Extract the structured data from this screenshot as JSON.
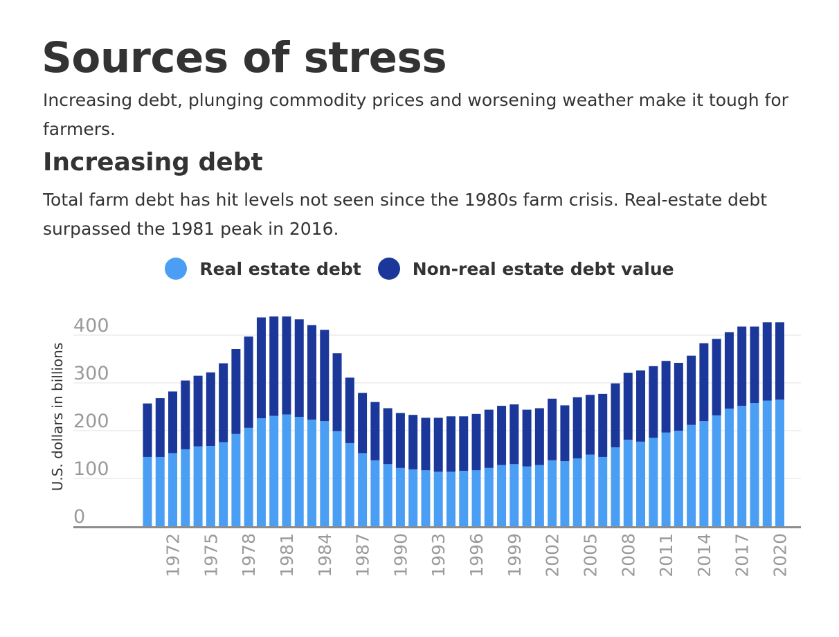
{
  "header": {
    "title": "Sources of stress",
    "subtitle": "Increasing debt, plunging commodity prices and worsening weather make it tough for farmers."
  },
  "section": {
    "title": "Increasing debt",
    "text": "Total farm debt has hit levels not seen since the 1980s farm crisis. Real-estate debt surpassed the 1981 peak in 2016."
  },
  "chart_data": {
    "type": "bar",
    "stacked": true,
    "ylabel": "U.S. dollars in billions",
    "ylim": [
      0,
      400
    ],
    "yticks": [
      0,
      100,
      200,
      300,
      400
    ],
    "grid": true,
    "legend_position": "top-center",
    "xtick_labels": [
      "1972",
      "1975",
      "1978",
      "1981",
      "1984",
      "1987",
      "1990",
      "1993",
      "1996",
      "1999",
      "2002",
      "2005",
      "2008",
      "2011",
      "2014",
      "2017",
      "2020"
    ],
    "categories": [
      "1970",
      "1971",
      "1972",
      "1973",
      "1974",
      "1975",
      "1976",
      "1977",
      "1978",
      "1979",
      "1980",
      "1981",
      "1982",
      "1983",
      "1984",
      "1985",
      "1986",
      "1987",
      "1988",
      "1989",
      "1990",
      "1991",
      "1992",
      "1993",
      "1994",
      "1995",
      "1996",
      "1997",
      "1998",
      "1999",
      "2000",
      "2001",
      "2002",
      "2003",
      "2004",
      "2005",
      "2006",
      "2007",
      "2008",
      "2009",
      "2010",
      "2011",
      "2012",
      "2013",
      "2014",
      "2015",
      "2016",
      "2017",
      "2018",
      "2019",
      "2020"
    ],
    "series": [
      {
        "name": "Real estate debt",
        "color": "#4a9ff5",
        "values": [
          145,
          145,
          153,
          161,
          167,
          168,
          176,
          193,
          206,
          226,
          231,
          234,
          229,
          223,
          220,
          199,
          174,
          153,
          138,
          130,
          122,
          119,
          117,
          114,
          114,
          116,
          117,
          122,
          128,
          130,
          125,
          128,
          138,
          136,
          142,
          150,
          145,
          165,
          181,
          177,
          185,
          196,
          200,
          212,
          220,
          232,
          246,
          252,
          258,
          263,
          265
        ]
      },
      {
        "name": "Non-real estate debt value",
        "color": "#1a3799",
        "values": [
          112,
          123,
          129,
          144,
          148,
          154,
          165,
          178,
          191,
          211,
          208,
          205,
          204,
          198,
          191,
          163,
          137,
          126,
          122,
          117,
          115,
          114,
          110,
          113,
          116,
          114,
          118,
          122,
          124,
          125,
          119,
          119,
          129,
          117,
          128,
          125,
          132,
          134,
          140,
          149,
          150,
          150,
          142,
          145,
          163,
          160,
          160,
          166,
          160,
          164,
          162
        ]
      }
    ]
  }
}
